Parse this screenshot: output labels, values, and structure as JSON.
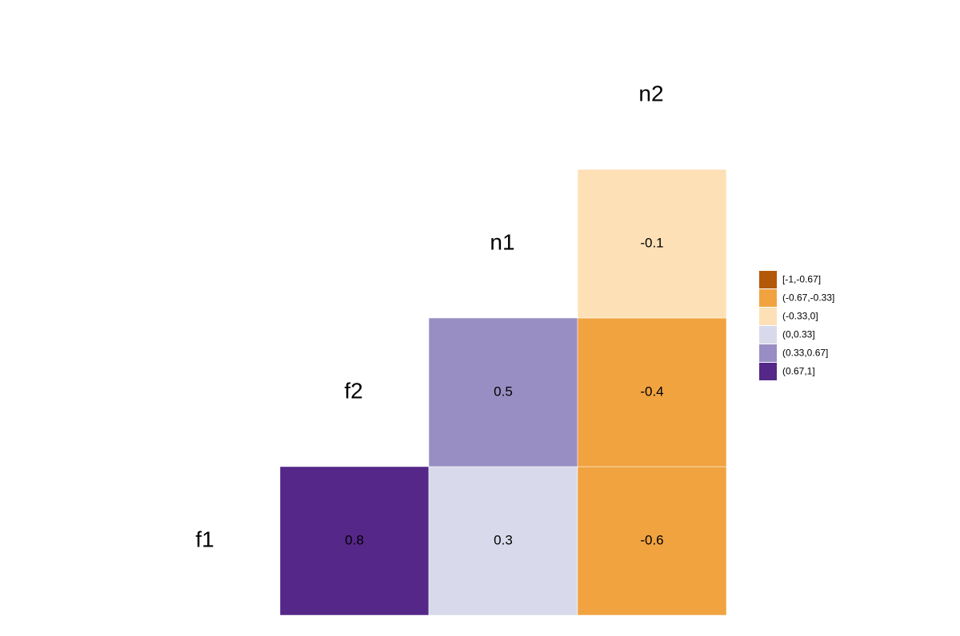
{
  "chart_data": {
    "type": "heatmap",
    "labels": [
      "f1",
      "f2",
      "n1",
      "n2"
    ],
    "cells": [
      {
        "x": "f2",
        "y": "f1",
        "value": 0.8,
        "color": "#542788"
      },
      {
        "x": "n1",
        "y": "f1",
        "value": 0.3,
        "color": "#d8daeb"
      },
      {
        "x": "n2",
        "y": "f1",
        "value": -0.6,
        "color": "#f1a340"
      },
      {
        "x": "n1",
        "y": "f2",
        "value": 0.5,
        "color": "#998ec3"
      },
      {
        "x": "n2",
        "y": "f2",
        "value": -0.4,
        "color": "#f1a340"
      },
      {
        "x": "n2",
        "y": "n1",
        "value": -0.1,
        "color": "#fee0b6"
      }
    ],
    "legend": [
      {
        "label": "[-1,-0.67]",
        "color": "#b35806"
      },
      {
        "label": "(-0.67,-0.33]",
        "color": "#f1a340"
      },
      {
        "label": "(-0.33,0]",
        "color": "#fee0b6"
      },
      {
        "label": "(0,0.33]",
        "color": "#d8daeb"
      },
      {
        "label": "(0.33,0.67]",
        "color": "#998ec3"
      },
      {
        "label": "(0.67,1]",
        "color": "#542788"
      }
    ]
  }
}
